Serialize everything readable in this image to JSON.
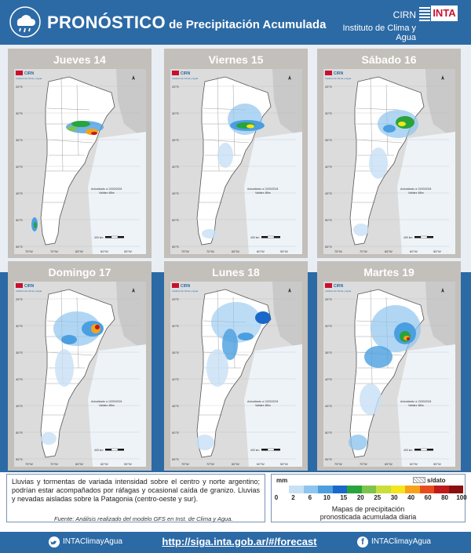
{
  "header": {
    "title_big": "PRONÓSTICO",
    "title_small": " de Precipitación Acumulada",
    "org_short": "CIRN",
    "org_name": "Instituto de Clima y Agua",
    "logo_text": "INTA",
    "icon": "rain-cloud-icon"
  },
  "panels": [
    {
      "day": "Jueves 14"
    },
    {
      "day": "Viernes 15"
    },
    {
      "day": "Sábado 16"
    },
    {
      "day": "Domingo 17"
    },
    {
      "day": "Lunes 18"
    },
    {
      "day": "Martes 19"
    }
  ],
  "map": {
    "cirn": "CIRN",
    "inst": "Instituto de Clima y Agua",
    "updated": "Actualizado a 13/03/2024",
    "validity": "Validez 48hs",
    "scale": "400 km",
    "source": "Fuente: Adaptado e interpretado del modelo GFS, COLA/IGES (USA).",
    "lat_labels": [
      "25°S",
      "30°S",
      "35°S",
      "40°S",
      "45°S",
      "50°S",
      "55°S"
    ],
    "lon_labels": [
      "75°W",
      "70°W",
      "65°W",
      "60°W",
      "55°W"
    ]
  },
  "description": {
    "text": "Lluvias y tormentas de variada intensidad sobre el centro y norte argentino; podrían estar acompañados por ráfagas y ocasional caída de granizo. Lluvias y nevadas aisladas sobre la Patagonia (centro-oeste y sur).",
    "source": "Fuente: Análisis realizado del modelo GFS en Inst. de Clima y Agua."
  },
  "legend": {
    "unit": "mm",
    "nodata": "s/dato",
    "caption_line1": "Mapas de precipitación",
    "caption_line2": "pronosticada acumulada diaria",
    "ticks": [
      "0",
      "2",
      "6",
      "10",
      "15",
      "20",
      "25",
      "30",
      "40",
      "60",
      "80",
      "100"
    ],
    "colors": [
      "#ffffff",
      "#c7e0f5",
      "#8fc4ee",
      "#4b9fe0",
      "#1a68c9",
      "#29a33c",
      "#7ec44a",
      "#c9de3a",
      "#f5e51c",
      "#f7a21b",
      "#e84c1c",
      "#c01a1a",
      "#8a1010"
    ]
  },
  "footer": {
    "twitter": "INTAClimayAgua",
    "url": "http://siga.inta.gob.ar/#/forecast",
    "facebook": "INTAClimayAgua"
  }
}
